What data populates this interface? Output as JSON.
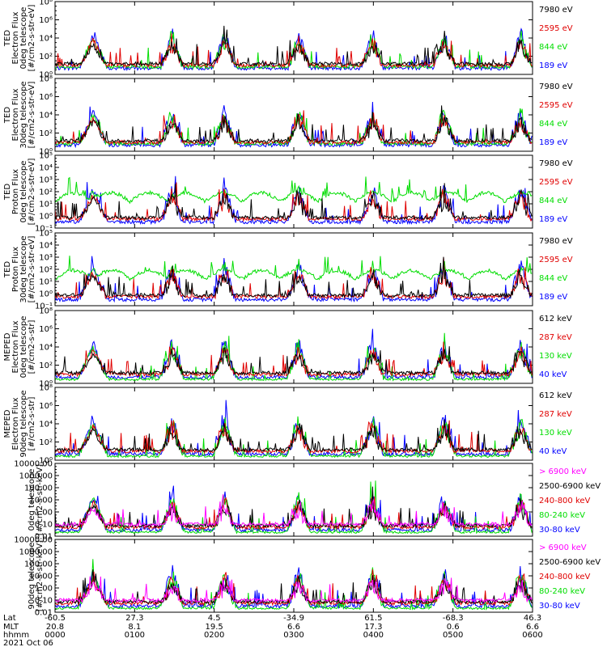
{
  "chart_data": [
    {
      "type": "line",
      "ylabel": [
        "TED",
        "Electron Flux",
        "0deg telescope",
        "[#/cm2-s-str-eV]"
      ],
      "yscale": "log",
      "yticks": [
        "10⁰",
        "10²",
        "10⁴",
        "10⁶",
        "10⁸"
      ],
      "ylim": [
        1,
        100000000
      ],
      "series": [
        {
          "name": "7980 eV",
          "color": "#000000"
        },
        {
          "name": "2595 eV",
          "color": "#e00000"
        },
        {
          "name": "844 eV",
          "color": "#00dd00"
        },
        {
          "name": "189 eV",
          "color": "#0000ff"
        }
      ]
    },
    {
      "type": "line",
      "ylabel": [
        "TED",
        "Electron Flux",
        "30deg telescope",
        "[#/cm2-s-str-eV]"
      ],
      "yscale": "log",
      "yticks": [
        "10⁰",
        "10²",
        "10⁴",
        "10⁶",
        "10⁸"
      ],
      "ylim": [
        1,
        100000000
      ],
      "series": [
        {
          "name": "7980 eV",
          "color": "#000000"
        },
        {
          "name": "2595 eV",
          "color": "#e00000"
        },
        {
          "name": "844 eV",
          "color": "#00dd00"
        },
        {
          "name": "189 eV",
          "color": "#0000ff"
        }
      ]
    },
    {
      "type": "line",
      "ylabel": [
        "TED",
        "Proton Flux",
        "0deg telescope",
        "[#/cm2-s-str-eV]"
      ],
      "yscale": "log",
      "yticks": [
        "10⁻¹",
        "10⁰",
        "10¹",
        "10²",
        "10³",
        "10⁴",
        "10⁵"
      ],
      "ylim": [
        0.1,
        100000
      ],
      "series": [
        {
          "name": "7980 eV",
          "color": "#000000"
        },
        {
          "name": "2595 eV",
          "color": "#e00000"
        },
        {
          "name": "844 eV",
          "color": "#00dd00"
        },
        {
          "name": "189 eV",
          "color": "#0000ff"
        }
      ]
    },
    {
      "type": "line",
      "ylabel": [
        "TED",
        "Proton Flux",
        "30deg telescope",
        "[#/cm2-s-str-eV]"
      ],
      "yscale": "log",
      "yticks": [
        "10⁻¹",
        "10⁰",
        "10¹",
        "10²",
        "10³",
        "10⁴",
        "10⁵"
      ],
      "ylim": [
        0.1,
        100000
      ],
      "series": [
        {
          "name": "7980 eV",
          "color": "#000000"
        },
        {
          "name": "2595 eV",
          "color": "#e00000"
        },
        {
          "name": "844 eV",
          "color": "#00dd00"
        },
        {
          "name": "189 eV",
          "color": "#0000ff"
        }
      ]
    },
    {
      "type": "line",
      "ylabel": [
        "MEPED",
        "Electron Flux",
        "0deg telescope",
        "[#/cm2-s-str]"
      ],
      "yscale": "log",
      "yticks": [
        "10⁰",
        "10²",
        "10⁴",
        "10⁶",
        "10⁸"
      ],
      "ylim": [
        1,
        100000000
      ],
      "series": [
        {
          "name": "612 keV",
          "color": "#000000"
        },
        {
          "name": "287 keV",
          "color": "#e00000"
        },
        {
          "name": "130 keV",
          "color": "#00dd00"
        },
        {
          "name": "40 keV",
          "color": "#0000ff"
        }
      ]
    },
    {
      "type": "line",
      "ylabel": [
        "MEPED",
        "Electron Flux",
        "90deg telescope",
        "[#/cm2-s-str]"
      ],
      "yscale": "log",
      "yticks": [
        "10⁰",
        "10²",
        "10⁴",
        "10⁶",
        "10⁸"
      ],
      "ylim": [
        1,
        100000000
      ],
      "series": [
        {
          "name": "612 keV",
          "color": "#000000"
        },
        {
          "name": "287 keV",
          "color": "#e00000"
        },
        {
          "name": "130 keV",
          "color": "#00dd00"
        },
        {
          "name": "40 keV",
          "color": "#0000ff"
        }
      ]
    },
    {
      "type": "line",
      "ylabel": [
        "0deg telescope",
        "[#/cm2-s-str-keV]"
      ],
      "yscale": "log",
      "yticks": [
        "0.01",
        "0.10",
        "1.00",
        "10.00",
        "100.00",
        "1000.00",
        "10000.00"
      ],
      "ylim": [
        0.01,
        10000
      ],
      "series": [
        {
          "name": "> 6900 keV",
          "color": "#ff00ff"
        },
        {
          "name": "2500-6900 keV",
          "color": "#000000"
        },
        {
          "name": "240-800 keV",
          "color": "#e00000"
        },
        {
          "name": "80-240 keV",
          "color": "#00dd00"
        },
        {
          "name": "30-80 keV",
          "color": "#0000ff"
        }
      ]
    },
    {
      "type": "line",
      "ylabel": [
        "90deg telescope",
        "[#/cm2-s-str-keV]"
      ],
      "yscale": "log",
      "yticks": [
        "0.01",
        "0.10",
        "1.00",
        "10.00",
        "100.00",
        "1000.00",
        "10000.00"
      ],
      "ylim": [
        0.01,
        10000
      ],
      "series": [
        {
          "name": "> 6900 keV",
          "color": "#ff00ff"
        },
        {
          "name": "2500-6900 keV",
          "color": "#000000"
        },
        {
          "name": "240-800 keV",
          "color": "#e00000"
        },
        {
          "name": "80-240 keV",
          "color": "#00dd00"
        },
        {
          "name": "30-80 keV",
          "color": "#0000ff"
        }
      ]
    }
  ],
  "xaxis": {
    "row_labels": [
      "Lat",
      "MLT",
      "hhmm"
    ],
    "ticks": [
      {
        "lat": "-60.5",
        "mlt": "20.8",
        "hhmm": "0000"
      },
      {
        "lat": "27.3",
        "mlt": "8.1",
        "hhmm": "0100"
      },
      {
        "lat": "4.5",
        "mlt": "19.5",
        "hhmm": "0200"
      },
      {
        "lat": "-34.9",
        "mlt": "6.6",
        "hhmm": "0300"
      },
      {
        "lat": "61.5",
        "mlt": "17.3",
        "hhmm": "0400"
      },
      {
        "lat": "-68.3",
        "mlt": "0.6",
        "hhmm": "0500"
      },
      {
        "lat": "46.3",
        "mlt": "6.6",
        "hhmm": "0600"
      }
    ],
    "date": "2021 Oct 06"
  },
  "passes": [
    0.08,
    0.245,
    0.355,
    0.51,
    0.665,
    0.815,
    0.975
  ]
}
